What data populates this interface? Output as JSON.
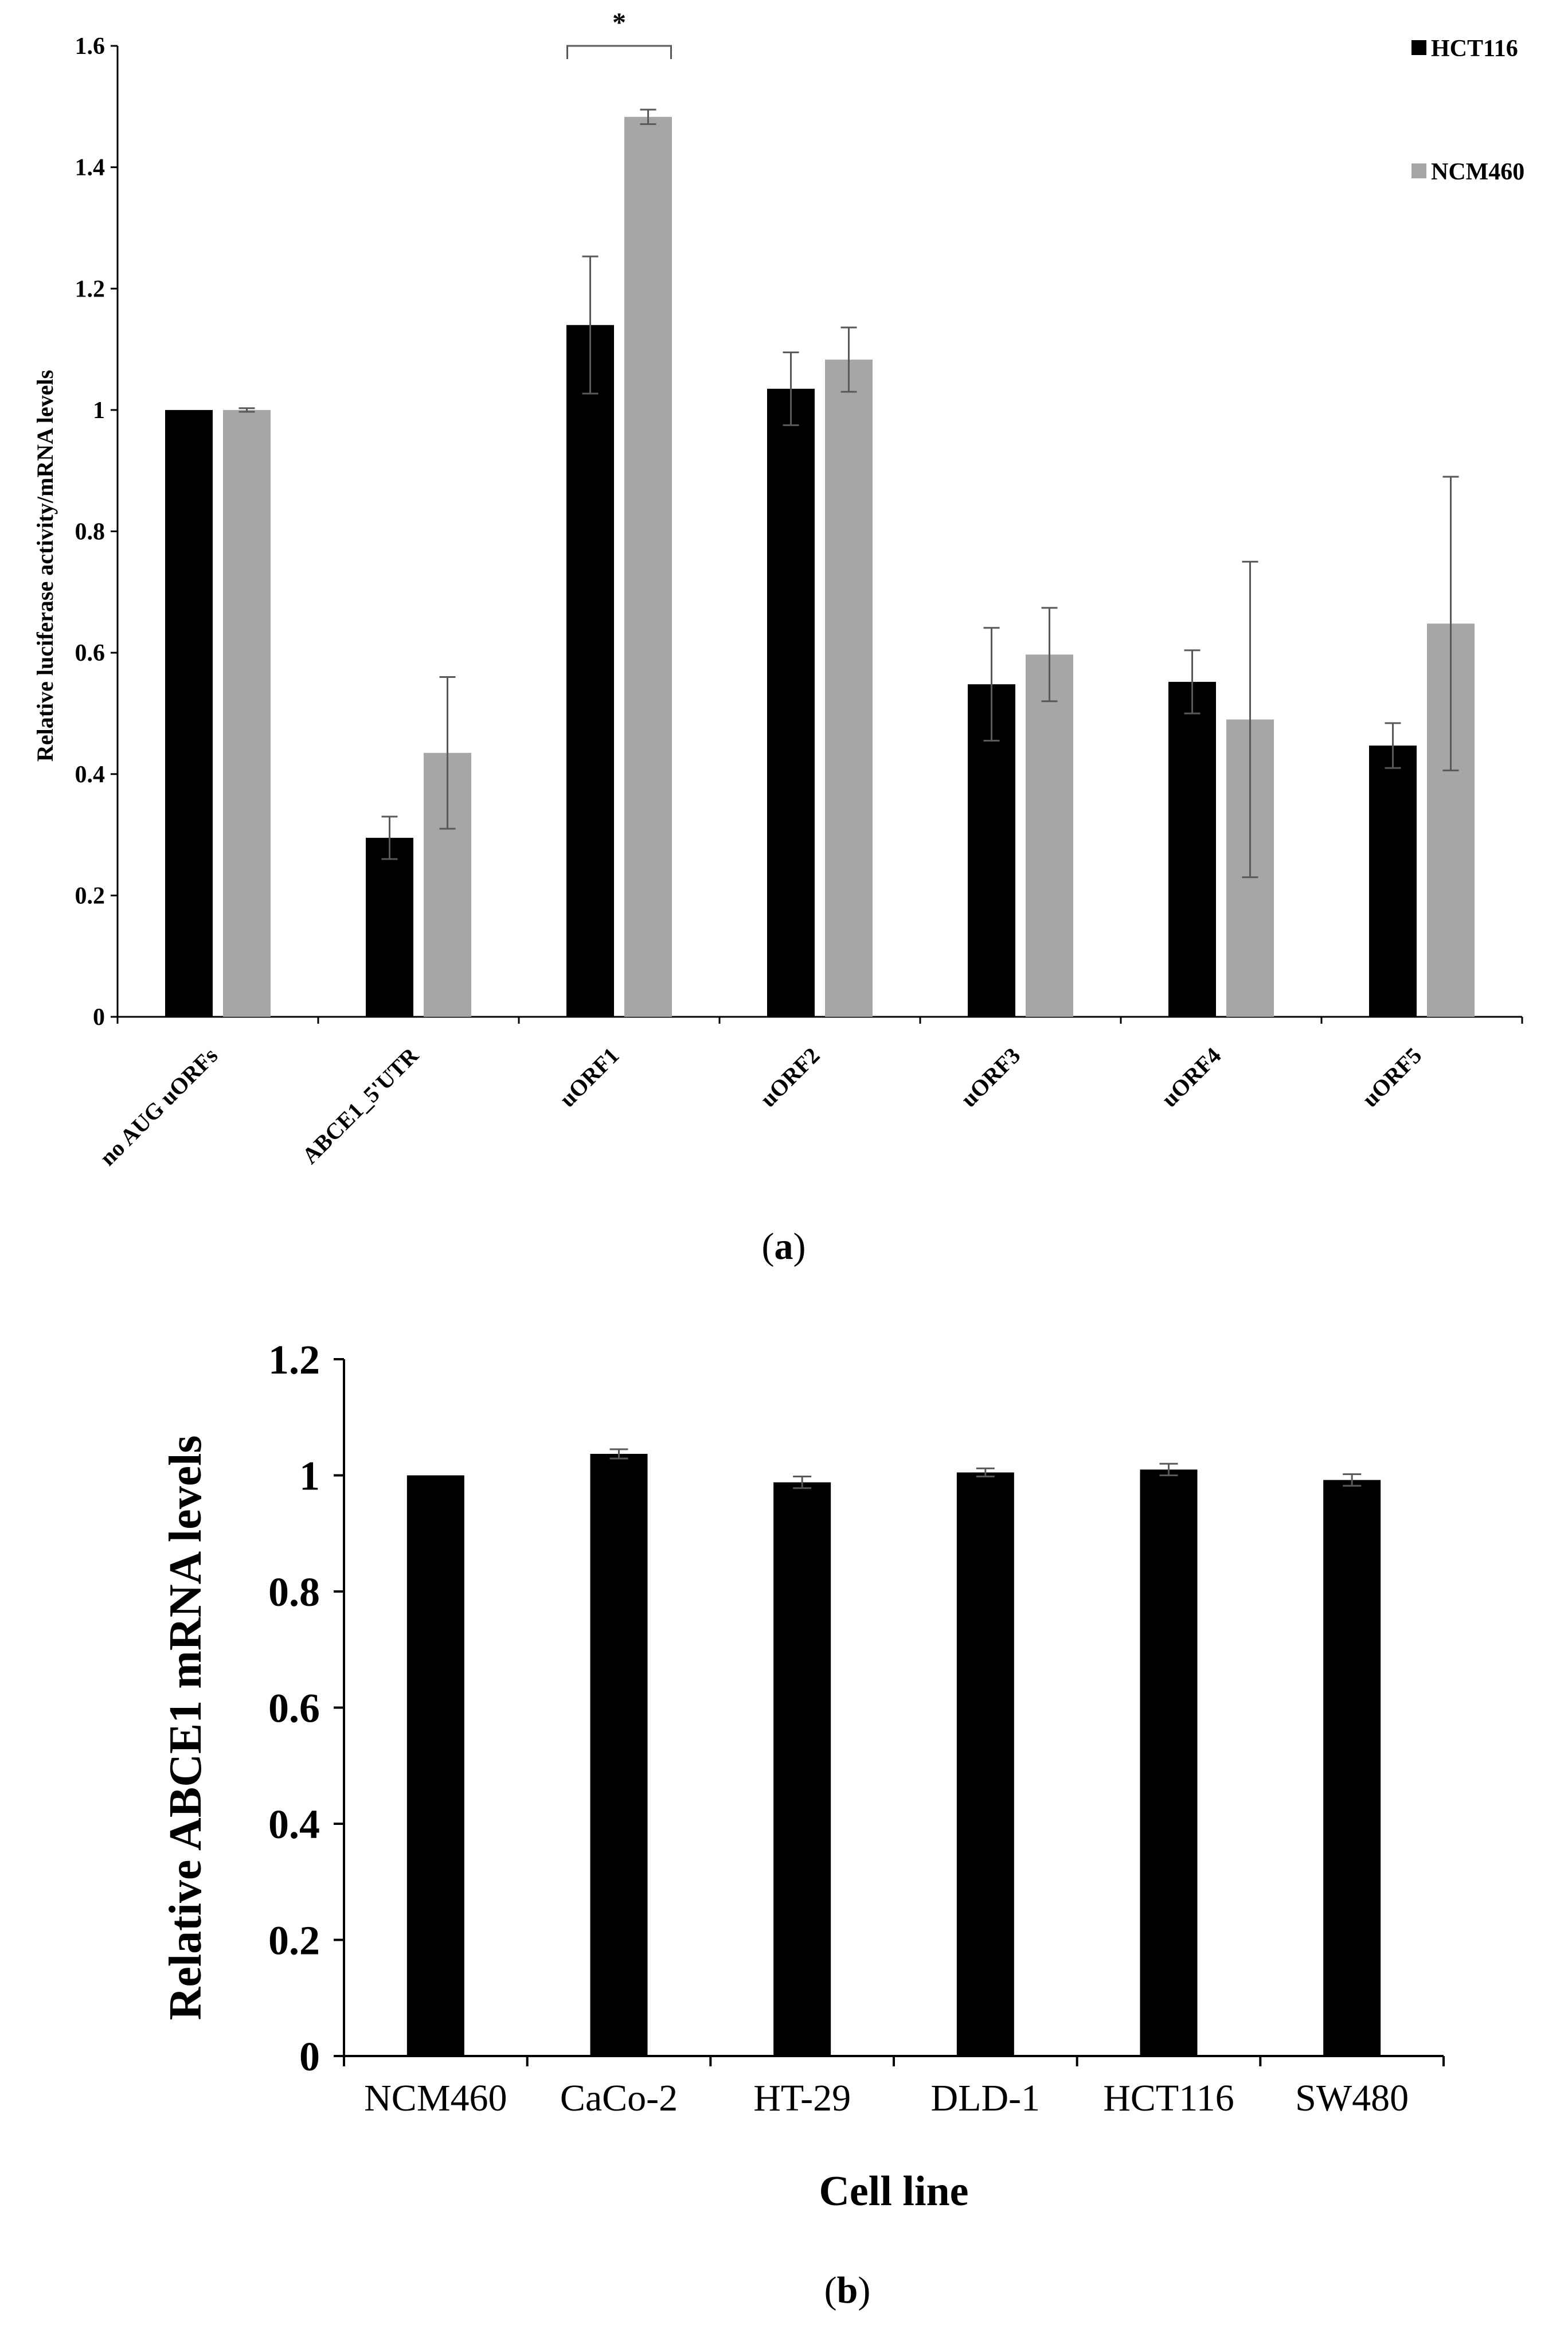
{
  "chart_data": [
    {
      "type": "bar",
      "panel_label_prefix": "(",
      "panel_label_letter": "a",
      "panel_label_suffix": ")",
      "ylabel": "Relative luciferase activity/mRNA levels",
      "xlabel": "",
      "ylim": [
        0,
        1.6
      ],
      "yticks": [
        "0",
        "0.2",
        "0.4",
        "0.6",
        "0.8",
        "1",
        "1.2",
        "1.4",
        "1.6"
      ],
      "categories": [
        "no AUG uORFs",
        "ABCE1_5'UTR",
        "uORF1",
        "uORF2",
        "uORF3",
        "uORF4",
        "uORF5"
      ],
      "series": [
        {
          "name": "HCT116",
          "color": "#000000",
          "values": [
            1.0,
            0.295,
            1.14,
            1.035,
            0.548,
            0.552,
            0.447
          ],
          "errors": [
            0.0,
            0.035,
            0.113,
            0.06,
            0.093,
            0.052,
            0.037
          ]
        },
        {
          "name": "NCM460",
          "color": "#a6a6a6",
          "values": [
            1.0,
            0.435,
            1.483,
            1.083,
            0.597,
            0.49,
            0.648
          ],
          "errors": [
            0.003,
            0.125,
            0.012,
            0.053,
            0.077,
            0.26,
            0.242
          ]
        }
      ],
      "legend": [
        "HCT116",
        "NCM460"
      ],
      "legend_position": "top-right",
      "annotation": {
        "text": "*",
        "category": "uORF1"
      }
    },
    {
      "type": "bar",
      "panel_label_prefix": "(",
      "panel_label_letter": "b",
      "panel_label_suffix": ")",
      "ylabel": "Relative ABCE1 mRNA levels",
      "xlabel": "Cell line",
      "ylim": [
        0,
        1.2
      ],
      "yticks": [
        "0",
        "0.2",
        "0.4",
        "0.6",
        "0.8",
        "1",
        "1.2"
      ],
      "categories": [
        "NCM460",
        "CaCo-2",
        "HT-29",
        "DLD-1",
        "HCT116",
        "SW480"
      ],
      "series": [
        {
          "name": "ABCE1 mRNA",
          "color": "#000000",
          "values": [
            1.0,
            1.037,
            0.988,
            1.005,
            1.01,
            0.992
          ],
          "errors": [
            0.0,
            0.008,
            0.01,
            0.007,
            0.01,
            0.01
          ]
        }
      ]
    }
  ]
}
